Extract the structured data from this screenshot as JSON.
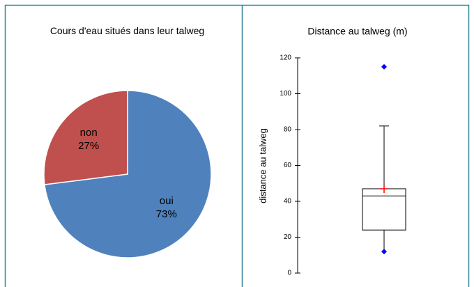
{
  "chart_data": [
    {
      "type": "pie",
      "title": "Cours d'eau situés dans leur talweg",
      "categories": [
        "oui",
        "non"
      ],
      "values": [
        73,
        27
      ],
      "value_labels": [
        "73%",
        "27%"
      ],
      "colors": [
        "#4f81bd",
        "#c0504d"
      ]
    },
    {
      "type": "box",
      "title": "Distance au talweg (m)",
      "y_label": "distance au talweg",
      "ylim": [
        0,
        120
      ],
      "yticks": [
        0,
        20,
        40,
        60,
        80,
        100,
        120
      ],
      "min": 12,
      "q1": 24,
      "median": 43,
      "q3": 47,
      "whisker_high": 82,
      "max": 115,
      "mean": 47,
      "box_color": "#000000",
      "extreme_color": "#0000ff",
      "mean_color": "#ff0000"
    }
  ]
}
